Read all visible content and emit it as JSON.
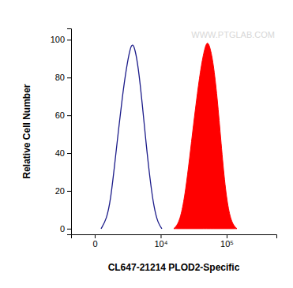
{
  "chart_data": {
    "type": "histogram",
    "x_label": "CL647-21214 PLOD2-Specific",
    "y_label": "Relative Cell Number",
    "annotations": [
      "WWW.PTGLAB.COM"
    ],
    "log": "x",
    "xlim": [
      -1500,
      530000
    ],
    "xticks": [
      0,
      {
        "value": 10000,
        "label": "10⁴"
      },
      {
        "value": 100000,
        "label": "10⁵"
      }
    ],
    "ylim": [
      -3,
      106
    ],
    "yticks": [
      0,
      20,
      40,
      60,
      80,
      100
    ],
    "series": [
      {
        "type": "line",
        "color": "#1c1c8a",
        "x": [
          293,
          605,
          866,
          1163,
          1502,
          1889,
          2331,
          2834,
          3170,
          3532,
          4064,
          4810,
          5663,
          6634,
          7743,
          9007,
          10451
        ],
        "values": [
          0,
          5,
          15,
          33,
          52,
          70,
          85,
          96,
          98,
          95,
          86,
          67,
          45,
          26,
          11,
          3,
          0
        ]
      },
      {
        "type": "area",
        "color": "#ff0000",
        "x": [
          16110,
          18550,
          21340,
          24510,
          28140,
          32270,
          36980,
          42350,
          48490,
          52560,
          56990,
          63450,
          72540,
          82920,
          94750,
          108250,
          123650,
          141200
        ],
        "values": [
          0,
          2,
          8,
          20,
          37,
          55,
          72,
          87,
          97,
          99,
          96,
          88,
          70,
          45,
          22,
          8,
          2,
          0
        ]
      }
    ]
  }
}
